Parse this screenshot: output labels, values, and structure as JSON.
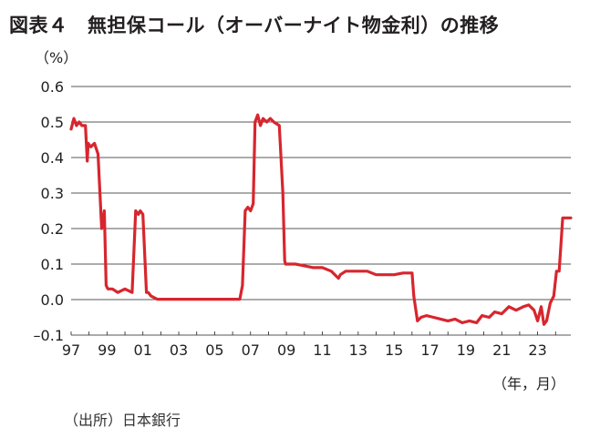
{
  "title": "図表４　無担保コール（オーバーナイト物金利）の推移",
  "unit_label": "（%）",
  "x_unit_label": "（年，月）",
  "source": "（出所）日本銀行",
  "colors": {
    "series": "#d7262e",
    "grid": "#231f20",
    "text": "#231f20"
  },
  "chart_data": {
    "type": "line",
    "title": "図表４　無担保コール（オーバーナイト物金利）の推移",
    "xlabel": "（年，月）",
    "ylabel": "（%）",
    "ylim": [
      -0.1,
      0.6
    ],
    "xlim": [
      1997,
      2024.85
    ],
    "yticks": [
      0.6,
      0.5,
      0.4,
      0.3,
      0.2,
      0.1,
      0.0,
      -0.1
    ],
    "ytick_labels": [
      "0.6",
      "0.5",
      "0.4",
      "0.3",
      "0.2",
      "0.1",
      "0.0",
      "–0.1"
    ],
    "xticks": [
      1997,
      1999,
      2001,
      2003,
      2005,
      2007,
      2009,
      2011,
      2013,
      2015,
      2017,
      2019,
      2021,
      2023
    ],
    "xtick_labels": [
      "97",
      "99",
      "01",
      "03",
      "05",
      "07",
      "09",
      "11",
      "13",
      "15",
      "17",
      "19",
      "21",
      "23"
    ],
    "grid": true,
    "legend": "none",
    "series": [
      {
        "x": [
          1997.0,
          1997.15,
          1997.3,
          1997.45,
          1997.6,
          1997.8,
          1997.9,
          1997.95,
          1998.1,
          1998.3,
          1998.5,
          1998.7,
          1998.85,
          1998.95,
          1999.05,
          1999.15,
          1999.3,
          1999.6,
          2000.0,
          2000.4,
          2000.6,
          2000.75,
          2000.85,
          2001.0,
          2001.2,
          2001.3,
          2001.45,
          2001.8,
          2002.5,
          2004.0,
          2005.5,
          2006.4,
          2006.55,
          2006.7,
          2006.85,
          2007.0,
          2007.15,
          2007.25,
          2007.4,
          2007.55,
          2007.7,
          2007.9,
          2008.1,
          2008.3,
          2008.6,
          2008.8,
          2008.9,
          2008.95,
          2009.1,
          2009.5,
          2010.0,
          2010.5,
          2011.0,
          2011.5,
          2011.9,
          2012.0,
          2012.3,
          2012.7,
          2013.0,
          2013.5,
          2014.0,
          2014.5,
          2015.0,
          2015.5,
          2016.0,
          2016.1,
          2016.3,
          2016.5,
          2016.8,
          2017.2,
          2017.6,
          2018.0,
          2018.4,
          2018.8,
          2019.2,
          2019.6,
          2019.9,
          2020.3,
          2020.6,
          2021.0,
          2021.4,
          2021.8,
          2022.2,
          2022.5,
          2022.8,
          2023.0,
          2023.2,
          2023.35,
          2023.5,
          2023.7,
          2023.9,
          2024.05,
          2024.2,
          2024.4,
          2024.6,
          2024.85
        ],
        "values": [
          0.48,
          0.51,
          0.49,
          0.5,
          0.49,
          0.49,
          0.39,
          0.44,
          0.43,
          0.44,
          0.41,
          0.2,
          0.25,
          0.04,
          0.03,
          0.03,
          0.03,
          0.02,
          0.03,
          0.02,
          0.25,
          0.24,
          0.25,
          0.24,
          0.02,
          0.02,
          0.01,
          0.001,
          0.001,
          0.001,
          0.001,
          0.001,
          0.04,
          0.25,
          0.26,
          0.25,
          0.27,
          0.5,
          0.52,
          0.49,
          0.51,
          0.5,
          0.51,
          0.5,
          0.49,
          0.3,
          0.11,
          0.1,
          0.1,
          0.1,
          0.095,
          0.09,
          0.09,
          0.08,
          0.06,
          0.07,
          0.08,
          0.08,
          0.08,
          0.08,
          0.07,
          0.07,
          0.07,
          0.075,
          0.075,
          0.01,
          -0.06,
          -0.05,
          -0.045,
          -0.05,
          -0.055,
          -0.06,
          -0.055,
          -0.065,
          -0.06,
          -0.065,
          -0.045,
          -0.05,
          -0.035,
          -0.04,
          -0.02,
          -0.03,
          -0.02,
          -0.015,
          -0.03,
          -0.06,
          -0.02,
          -0.07,
          -0.06,
          -0.01,
          0.01,
          0.08,
          0.08,
          0.23,
          0.23,
          0.23
        ]
      }
    ]
  }
}
